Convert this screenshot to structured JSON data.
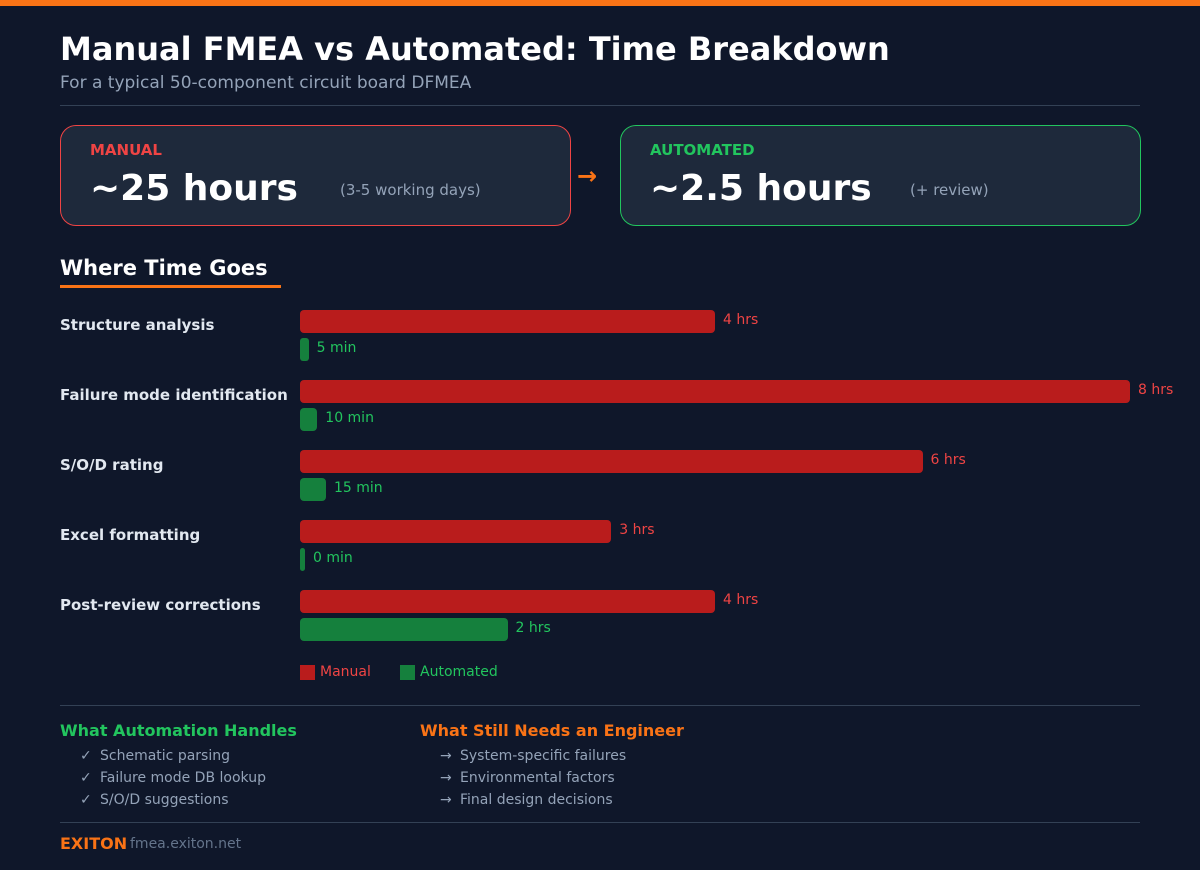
{
  "header": {
    "title": "Manual FMEA vs Automated: Time Breakdown",
    "subtitle": "For a typical 50-component circuit board DFMEA"
  },
  "summary": {
    "manual": {
      "label": "MANUAL",
      "value": "~25 hours",
      "note": "(3-5 working days)"
    },
    "arrow": "→",
    "automated": {
      "label": "AUTOMATED",
      "value": "~2.5 hours",
      "note": "(+ review)"
    }
  },
  "section_title": "Where Time Goes",
  "colors": {
    "accent": "#f97316",
    "manual": "#b91c1c",
    "manual_text": "#ef4444",
    "automated": "#15803d",
    "automated_text": "#22c55e"
  },
  "chart_data": {
    "type": "bar",
    "orientation": "horizontal",
    "unit": "hours",
    "categories": [
      "Structure analysis",
      "Failure mode identification",
      "S/O/D rating",
      "Excel formatting",
      "Post-review corrections"
    ],
    "series": [
      {
        "name": "Manual",
        "values": [
          4,
          8,
          6,
          3,
          4
        ],
        "labels": [
          "4 hrs",
          "8 hrs",
          "6 hrs",
          "3 hrs",
          "4 hrs"
        ]
      },
      {
        "name": "Automated",
        "values": [
          0.0833,
          0.1667,
          0.25,
          0,
          2
        ],
        "labels": [
          "5 min",
          "10 min",
          "15 min",
          "0 min",
          "2 hrs"
        ]
      }
    ],
    "xlim": [
      0,
      8
    ],
    "legend": "bottom-left",
    "grid": false
  },
  "handles": {
    "title": "What Automation Handles",
    "marker": "✓",
    "items": [
      "Schematic parsing",
      "Failure mode DB lookup",
      "S/O/D suggestions"
    ]
  },
  "engineer": {
    "title": "What Still Needs an Engineer",
    "marker": "→",
    "items": [
      "System-specific failures",
      "Environmental factors",
      "Final design decisions"
    ]
  },
  "footer": {
    "brand": "EXITON",
    "url": "fmea.exiton.net"
  }
}
